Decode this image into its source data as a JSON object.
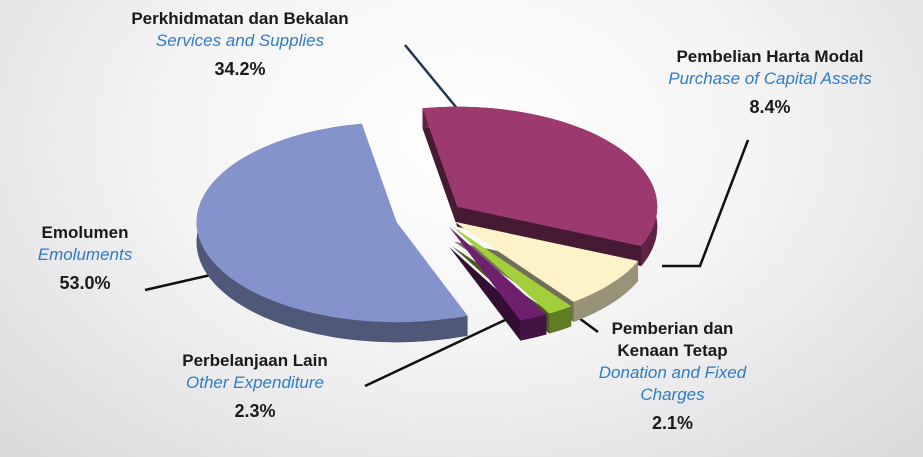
{
  "chart_data": {
    "type": "pie",
    "categories": [
      "Perkhidmatan dan Bekalan",
      "Pembelian Harta Modal",
      "Pemberian dan Kenaan Tetap",
      "Perbelanjaan Lain",
      "Emolumen"
    ],
    "categories_en": [
      "Services and Supplies",
      "Purchase of Capital Assets",
      "Donation and Fixed Charges",
      "Other Expenditure",
      "Emoluments"
    ],
    "values": [
      34.2,
      8.4,
      2.1,
      2.3,
      53.0
    ],
    "value_labels": [
      "34.2%",
      "8.4%",
      "2.1%",
      "2.3%",
      "53.0%"
    ],
    "colors": [
      "#9c3a70",
      "#fcf4c8",
      "#a3cf3c",
      "#6e1f6e",
      "#8593cc"
    ]
  }
}
